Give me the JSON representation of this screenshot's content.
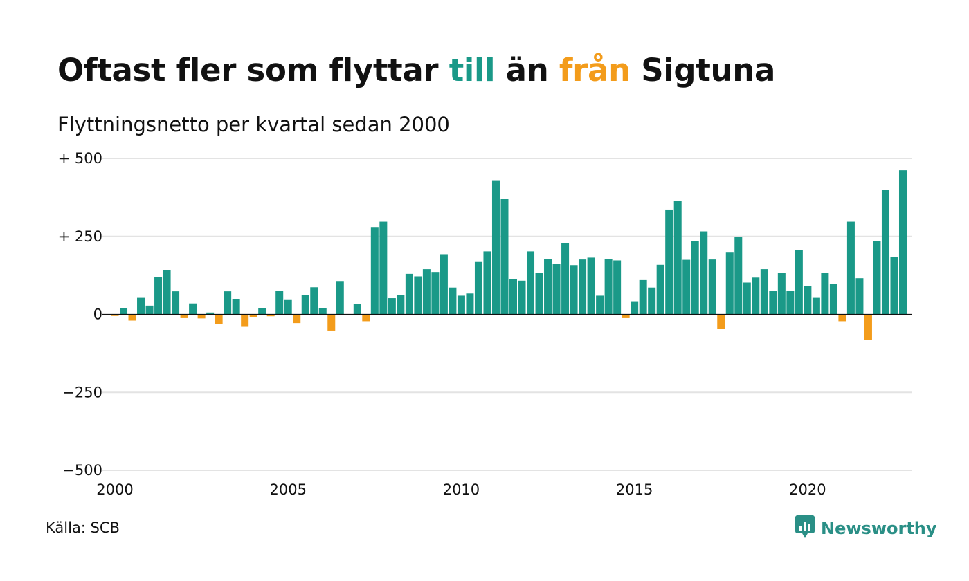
{
  "title": {
    "part1": "Oftast fler som flyttar ",
    "highlight_to": "till",
    "part2": " än ",
    "highlight_from": "från",
    "part3": " Sigtuna"
  },
  "subtitle": "Flyttningsnetto per kvartal sedan 2000",
  "source": "Källa: SCB",
  "brand": "Newsworthy",
  "colors": {
    "positive": "#1a9988",
    "negative": "#f39c1b",
    "grid": "#e3e3e3",
    "zero_line": "#111111",
    "brand": "#2a8f86"
  },
  "chart_data": {
    "type": "bar",
    "title": "Oftast fler som flyttar till än från Sigtuna",
    "subtitle": "Flyttningsnetto per kvartal sedan 2000",
    "x_start": 2000,
    "x_step": 0.25,
    "xlim": [
      2000,
      2023
    ],
    "ylim": [
      -500,
      500
    ],
    "y_ticks": [
      500,
      250,
      0,
      -250,
      -500
    ],
    "y_tick_labels": [
      "+ 500",
      "+ 250",
      "0",
      "−250",
      "−500"
    ],
    "x_ticks": [
      2000,
      2005,
      2010,
      2015,
      2020
    ],
    "x_tick_labels": [
      "2000",
      "2005",
      "2010",
      "2015",
      "2020"
    ],
    "grid": true,
    "legend": "none",
    "values": [
      -5,
      20,
      -20,
      53,
      28,
      120,
      142,
      74,
      -12,
      35,
      -13,
      6,
      -32,
      74,
      48,
      -40,
      -8,
      21,
      -6,
      76,
      46,
      -28,
      61,
      87,
      21,
      -52,
      107,
      0,
      34,
      -22,
      280,
      297,
      52,
      62,
      130,
      122,
      145,
      136,
      193,
      86,
      60,
      67,
      168,
      202,
      430,
      370,
      113,
      108,
      202,
      132,
      177,
      161,
      229,
      158,
      176,
      182,
      60,
      178,
      173,
      -12,
      42,
      110,
      86,
      159,
      336,
      364,
      175,
      235,
      266,
      176,
      -46,
      198,
      248,
      102,
      118,
      145,
      75,
      133,
      75,
      206,
      90,
      53,
      134,
      98,
      -22,
      297,
      116,
      -82,
      235,
      400,
      183,
      462
    ]
  }
}
